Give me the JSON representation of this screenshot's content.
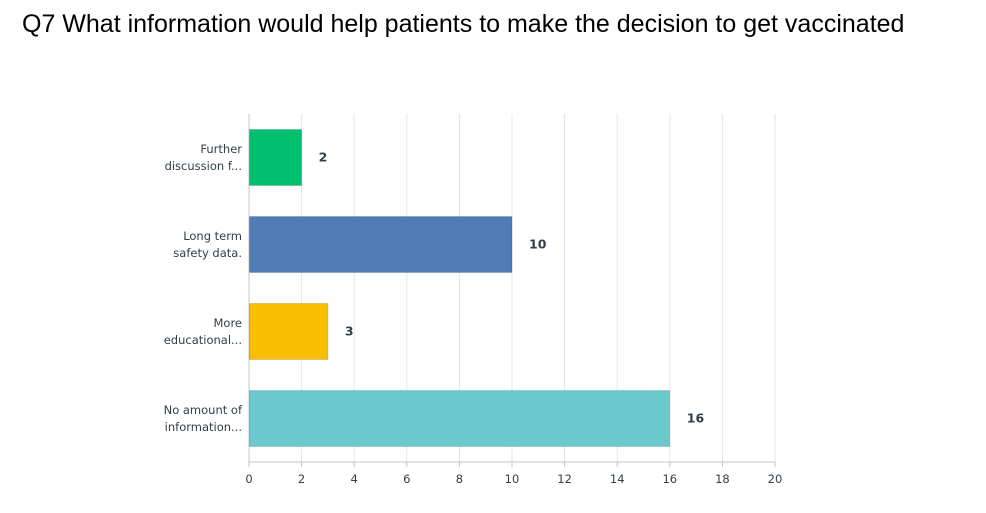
{
  "chart_data": {
    "type": "bar",
    "orientation": "horizontal",
    "title": "Q7 What information would help patients to make the decision to get vaccinated",
    "categories": [
      [
        "Further",
        "discussion f..."
      ],
      [
        "Long term",
        "safety data."
      ],
      [
        "More",
        "educational..."
      ],
      [
        "No amount of",
        "information..."
      ]
    ],
    "values": [
      2,
      10,
      3,
      16
    ],
    "colors": [
      "#00bf6f",
      "#507cb6",
      "#f9be00",
      "#6bc8cd"
    ],
    "xlim": [
      0,
      20
    ],
    "xticks": [
      0,
      2,
      4,
      6,
      8,
      10,
      12,
      14,
      16,
      18,
      20
    ],
    "grid": true,
    "data_labels": true
  }
}
